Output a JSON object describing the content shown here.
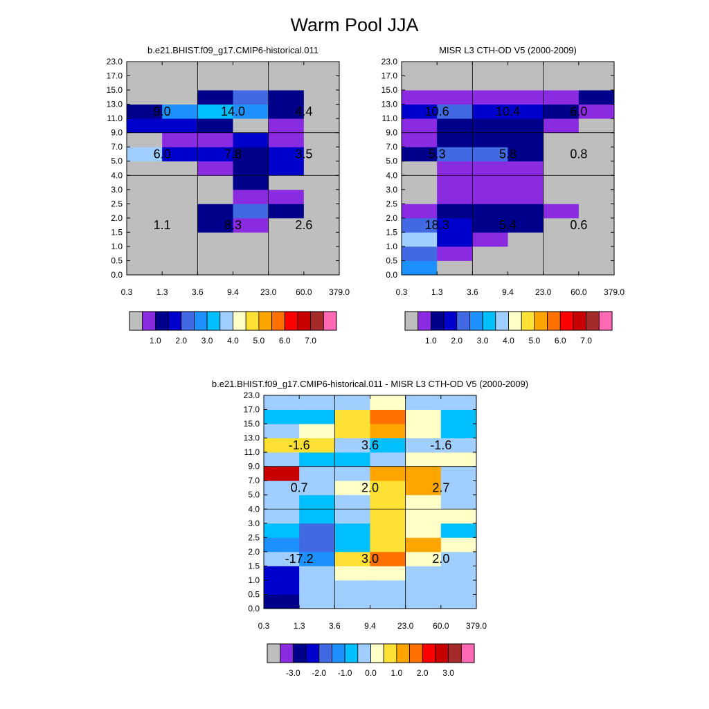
{
  "title": "Warm Pool JJA",
  "y_ticks": [
    "0.0",
    "0.5",
    "1.0",
    "1.5",
    "2.0",
    "2.5",
    "3.0",
    "4.0",
    "5.0",
    "7.0",
    "9.0",
    "11.0",
    "13.0",
    "15.0",
    "17.0",
    "23.0"
  ],
  "x_ticks": [
    "0.3",
    "1.3",
    "3.6",
    "9.4",
    "23.0",
    "60.0",
    "379.0"
  ],
  "colors": {
    "colormap": [
      "#bebebe",
      "#8a2be2",
      "#00008b",
      "#0000cd",
      "#4169e1",
      "#1e90ff",
      "#00bfff",
      "#a0cfff",
      "#ffffc8",
      "#ffe135",
      "#ffa500",
      "#ff7000",
      "#ff0000",
      "#c80000",
      "#a52a2a",
      "#ff69b4"
    ],
    "grid": "#000000"
  },
  "chart_data": [
    {
      "type": "heatmap",
      "title": "b.e21.BHIST.f09_g17.CMIP6-historical.011",
      "colorbar_labels": [
        "1.0",
        "2.0",
        "3.0",
        "4.0",
        "5.0",
        "6.0",
        "7.0"
      ],
      "colorbar_label_index": [
        2,
        4,
        6,
        8,
        10,
        12,
        14
      ],
      "cells": [
        [
          0,
          0,
          0,
          0,
          0,
          0
        ],
        [
          0,
          0,
          0,
          0,
          0,
          0
        ],
        [
          0,
          0,
          0,
          0,
          0,
          0
        ],
        [
          0,
          0,
          2,
          1,
          0,
          0
        ],
        [
          0,
          0,
          2,
          4,
          2,
          0
        ],
        [
          0,
          0,
          0,
          1,
          1,
          0
        ],
        [
          0,
          0,
          0,
          2,
          0,
          0
        ],
        [
          0,
          0,
          1,
          2,
          3,
          0
        ],
        [
          7,
          3,
          3,
          2,
          3,
          0
        ],
        [
          0,
          1,
          1,
          3,
          1,
          0
        ],
        [
          3,
          3,
          2,
          0,
          1,
          0
        ],
        [
          2,
          5,
          6,
          5,
          2,
          0
        ],
        [
          0,
          0,
          2,
          4,
          2,
          0
        ],
        [
          0,
          0,
          0,
          0,
          0,
          0
        ],
        [
          0,
          0,
          0,
          0,
          0,
          0
        ]
      ],
      "annotations": [
        {
          "row": "low",
          "col": 0,
          "text": "1.1"
        },
        {
          "row": "low",
          "col": 1,
          "text": "8.3"
        },
        {
          "row": "low",
          "col": 2,
          "text": "2.6"
        },
        {
          "row": "mid",
          "col": 0,
          "text": "6.0"
        },
        {
          "row": "mid",
          "col": 1,
          "text": "7.8"
        },
        {
          "row": "mid",
          "col": 2,
          "text": "3.5"
        },
        {
          "row": "high",
          "col": 0,
          "text": "9.0"
        },
        {
          "row": "high",
          "col": 1,
          "text": "14.0"
        },
        {
          "row": "high",
          "col": 2,
          "text": "4.4"
        }
      ]
    },
    {
      "type": "heatmap",
      "title": "MISR L3 CTH-OD V5 (2000-2009)",
      "colorbar_labels": [
        "1.0",
        "2.0",
        "3.0",
        "4.0",
        "5.0",
        "6.0",
        "7.0"
      ],
      "colorbar_label_index": [
        2,
        4,
        6,
        8,
        10,
        12,
        14
      ],
      "cells": [
        [
          5,
          0,
          0,
          0,
          0,
          0
        ],
        [
          4,
          1,
          0,
          0,
          0,
          0
        ],
        [
          7,
          3,
          1,
          0,
          0,
          0
        ],
        [
          4,
          3,
          2,
          2,
          0,
          0
        ],
        [
          1,
          2,
          2,
          2,
          1,
          0
        ],
        [
          0,
          1,
          1,
          1,
          0,
          0
        ],
        [
          0,
          1,
          1,
          1,
          0,
          0
        ],
        [
          0,
          1,
          1,
          1,
          0,
          0
        ],
        [
          2,
          4,
          4,
          2,
          0,
          0
        ],
        [
          1,
          2,
          2,
          2,
          0,
          0
        ],
        [
          1,
          2,
          2,
          2,
          1,
          0
        ],
        [
          3,
          4,
          3,
          3,
          2,
          1
        ],
        [
          1,
          1,
          1,
          1,
          1,
          2
        ],
        [
          0,
          0,
          0,
          0,
          0,
          0
        ],
        [
          0,
          0,
          0,
          0,
          0,
          0
        ]
      ],
      "annotations": [
        {
          "row": "low",
          "col": 0,
          "text": "18.3"
        },
        {
          "row": "low",
          "col": 1,
          "text": "5.4"
        },
        {
          "row": "low",
          "col": 2,
          "text": "0.6"
        },
        {
          "row": "mid",
          "col": 0,
          "text": "5.3"
        },
        {
          "row": "mid",
          "col": 1,
          "text": "5.8"
        },
        {
          "row": "mid",
          "col": 2,
          "text": "0.8"
        },
        {
          "row": "high",
          "col": 0,
          "text": "10.6"
        },
        {
          "row": "high",
          "col": 1,
          "text": "10.4"
        },
        {
          "row": "high",
          "col": 2,
          "text": "6.0"
        }
      ]
    },
    {
      "type": "heatmap",
      "title": "b.e21.BHIST.f09_g17.CMIP6-historical.011 - MISR L3 CTH-OD V5 (2000-2009)",
      "colorbar_labels": [
        "-3.0",
        "-2.0",
        "-1.0",
        "0.0",
        "1.0",
        "2.0",
        "3.0"
      ],
      "colorbar_label_index": [
        2,
        4,
        6,
        8,
        10,
        12,
        14
      ],
      "cells": [
        [
          2,
          7,
          7,
          7,
          7,
          7
        ],
        [
          3,
          7,
          7,
          7,
          7,
          7
        ],
        [
          3,
          7,
          8,
          8,
          7,
          7
        ],
        [
          7,
          5,
          9,
          11,
          8,
          7
        ],
        [
          5,
          4,
          6,
          9,
          10,
          8
        ],
        [
          6,
          4,
          6,
          9,
          8,
          6
        ],
        [
          7,
          6,
          7,
          9,
          8,
          8
        ],
        [
          7,
          6,
          7,
          9,
          8,
          7
        ],
        [
          7,
          7,
          8,
          9,
          10,
          7
        ],
        [
          13,
          7,
          7,
          10,
          10,
          7
        ],
        [
          7,
          6,
          6,
          7,
          8,
          8
        ],
        [
          9,
          9,
          7,
          6,
          7,
          7
        ],
        [
          7,
          8,
          9,
          10,
          8,
          6
        ],
        [
          6,
          6,
          9,
          11,
          8,
          6
        ],
        [
          7,
          7,
          7,
          8,
          7,
          7
        ]
      ],
      "annotations": [
        {
          "row": "low",
          "col": 0,
          "text": "-17.2"
        },
        {
          "row": "low",
          "col": 1,
          "text": "3.0"
        },
        {
          "row": "low",
          "col": 2,
          "text": "2.0"
        },
        {
          "row": "mid",
          "col": 0,
          "text": "0.7"
        },
        {
          "row": "mid",
          "col": 1,
          "text": "2.0"
        },
        {
          "row": "mid",
          "col": 2,
          "text": "2.7"
        },
        {
          "row": "high",
          "col": 0,
          "text": "-1.6"
        },
        {
          "row": "high",
          "col": 1,
          "text": "3.6"
        },
        {
          "row": "high",
          "col": 2,
          "text": "-1.6"
        }
      ]
    }
  ]
}
